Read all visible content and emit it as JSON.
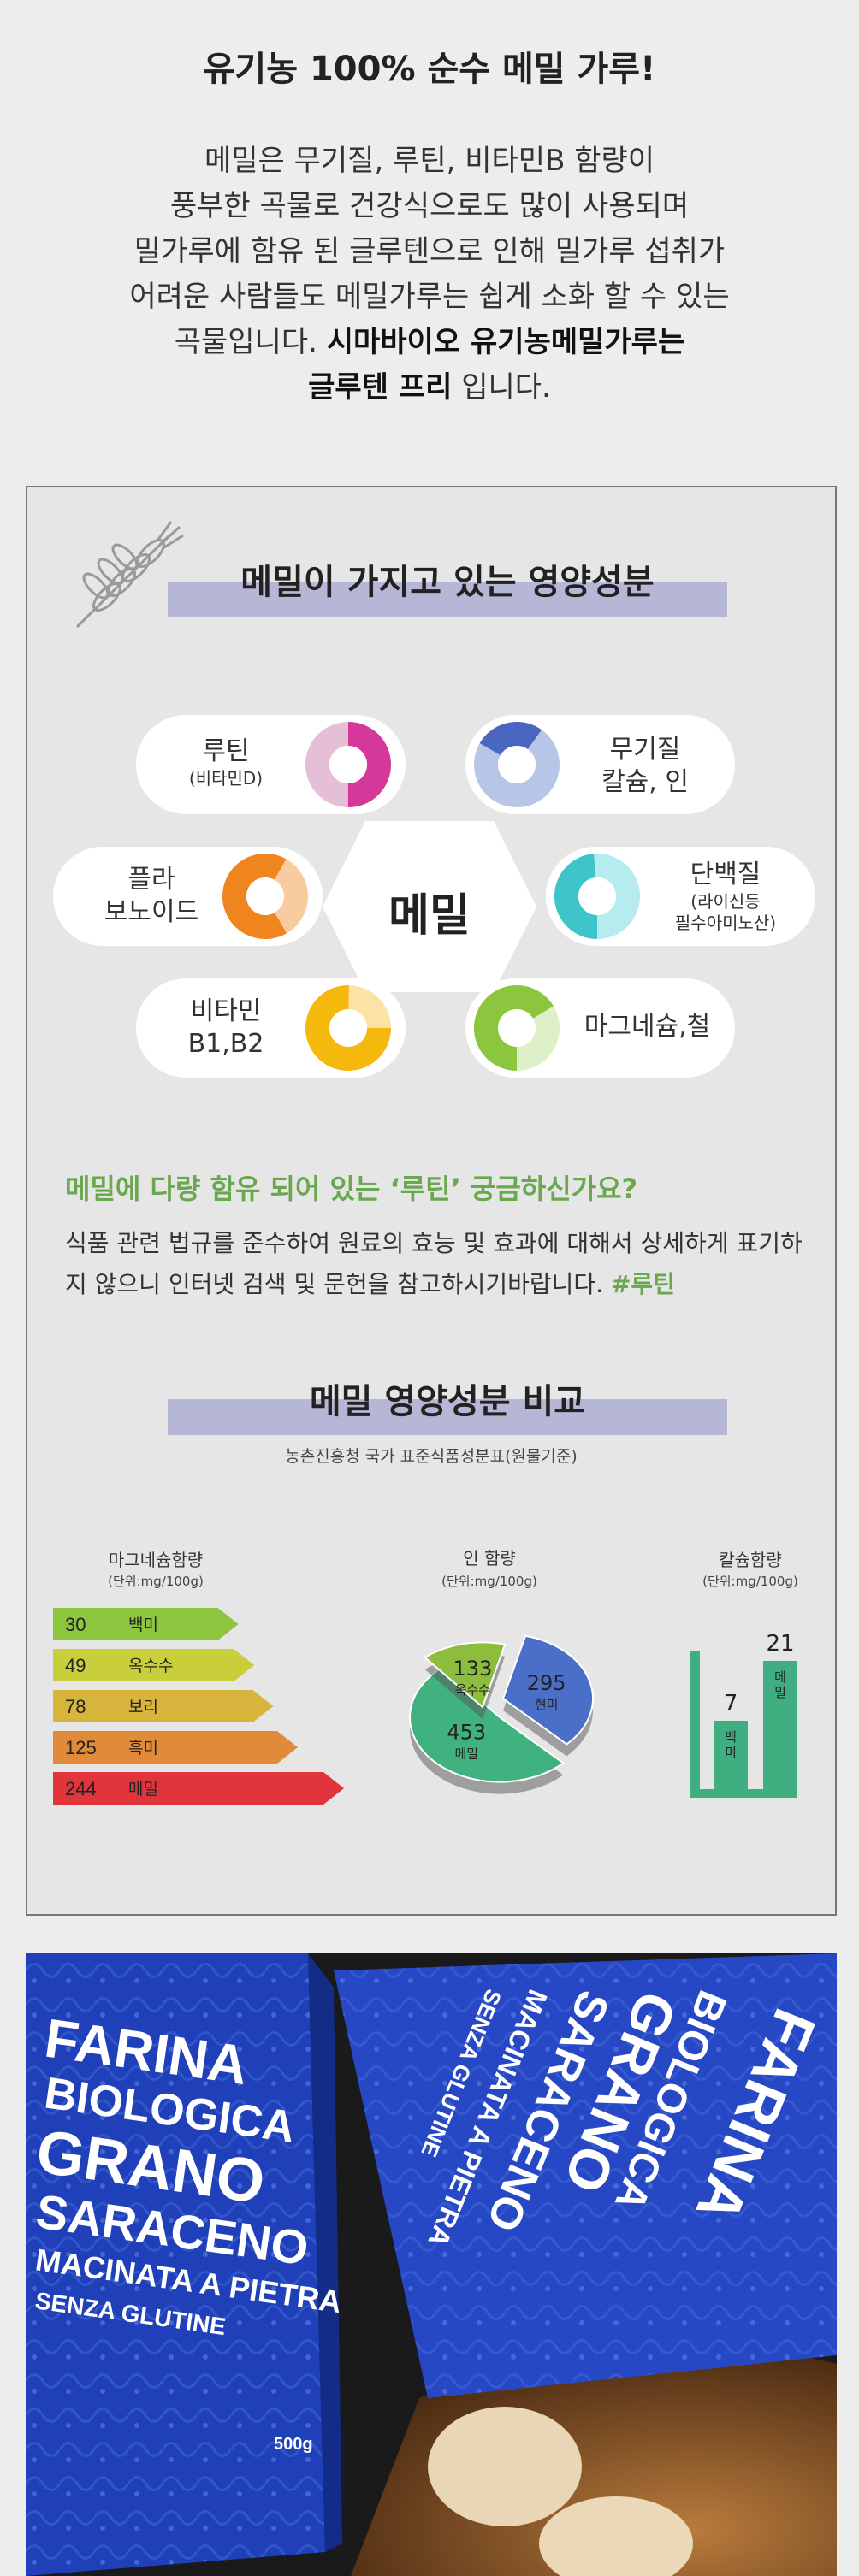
{
  "intro": {
    "title": "유기농 100% 순수 메밀 가루!",
    "lines": [
      "메밀은 무기질, 루틴, 비타민B 함량이",
      "풍부한 곡물로 건강식으로도 많이 사용되며",
      "밀가루에 함유 된 글루텐으로 인해 밀가루 섭취가",
      "어려운 사람들도 메밀가루는 쉽게 소화 할 수 있는"
    ],
    "line5_plain": "곡물입니다. ",
    "line5_bold": "시마바이오 유기농메밀가루는",
    "line6_bold": "글루텐 프리",
    "line6_plain": " 입니다."
  },
  "nutrients": {
    "title": "메밀이 가지고 있는 영양성분",
    "center": "메밀",
    "items": [
      {
        "label": "루틴",
        "sub": "(비타민D)",
        "color": "#d6389a",
        "light": "#e4bfd6"
      },
      {
        "label": "무기질",
        "sub": "칼슘, 인",
        "color": "#4a66c0",
        "light": "#b7c5e6"
      },
      {
        "label": "플라",
        "sub": "보노이드",
        "color": "#f0841e",
        "light": "#f8cc9e"
      },
      {
        "label": "단백질",
        "sub": "(라이신등",
        "sub2": "필수아미노산)",
        "color": "#3fc4c9",
        "light": "#b6ecef"
      },
      {
        "label": "비타민",
        "sub": "B1,B2",
        "color": "#f5b80c",
        "light": "#fbe3a6"
      },
      {
        "label": "마그네슘,철",
        "color": "#8cc63f",
        "light": "#dcefc6"
      }
    ]
  },
  "rutin": {
    "title": "메밀에 다량 함유 되어 있는 ‘루틴’ 궁금하신가요?",
    "body": "식품 관련 법규를 준수하여 원료의 효능 및 효과에 대해서 상세하게 표기하지 않으니 인터넷 검색 및 문헌을 참고하시기바랍니다. ",
    "tag": "#루틴"
  },
  "compare": {
    "title": "메밀 영양성분 비교",
    "source": "농촌진흥청 국가 표준식품성분표(원물기준)"
  },
  "chart_data": [
    {
      "type": "bar",
      "title": "마그네슘함량",
      "unit": "(단위:mg/100g)",
      "categories": [
        "백미",
        "옥수수",
        "보리",
        "흑미",
        "메밀"
      ],
      "values": [
        30,
        49,
        78,
        125,
        244
      ],
      "colors": [
        "#8cc63f",
        "#c9cf3a",
        "#d7b43c",
        "#e08a3a",
        "#e0353a"
      ]
    },
    {
      "type": "pie",
      "title": "인 함량",
      "unit": "(단위:mg/100g)",
      "categories": [
        "현미",
        "메밀",
        "옥수수"
      ],
      "values": [
        295,
        453,
        133
      ],
      "colors": [
        "#4a6fc8",
        "#3fb27f",
        "#8cbd3c"
      ]
    },
    {
      "type": "bar",
      "title": "칼슘함량",
      "unit": "(단위:mg/100g)",
      "categories": [
        "백미",
        "메밀"
      ],
      "values": [
        7,
        21
      ],
      "colors": [
        "#3fae80",
        "#3fae80"
      ]
    }
  ],
  "photo": {
    "bag_lines": [
      "FARINA",
      "BIOLOGICA",
      "GRANO",
      "SARACENO",
      "MACINATA A PIETRA",
      "SENZA GLUTINE"
    ],
    "weight": "500g"
  }
}
